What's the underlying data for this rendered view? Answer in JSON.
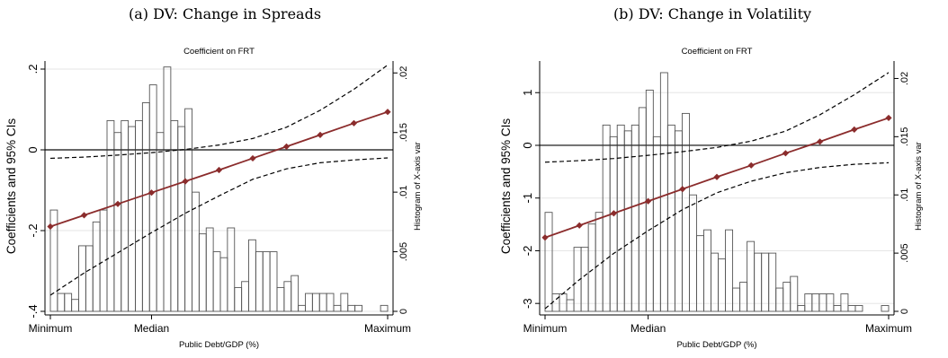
{
  "colors": {
    "estimate": "#8b2c2c",
    "ci": "#000000",
    "bars": "#555555",
    "zero": "#333333"
  },
  "chart_data": [
    {
      "type": "line",
      "caption": "(a) DV: Change in Spreads",
      "title": "Coefficient on FRT",
      "xlabel": "Public Debt/GDP (%)",
      "ylabel": "Coefficients and 95% CIs",
      "y2label": "Histogram of X-axis var",
      "x_ticks": [
        "Minimum",
        "Median",
        "Maximum"
      ],
      "xlim": [
        0,
        1
      ],
      "ylim": [
        -0.4,
        0.22
      ],
      "yticks": [
        -0.4,
        -0.2,
        0,
        0.2
      ],
      "ytick_labels": [
        "-.4",
        "-.2",
        "0",
        ".2"
      ],
      "y2lim": [
        0,
        0.021
      ],
      "y2ticks": [
        0,
        0.005,
        0.01,
        0.015,
        0.02
      ],
      "y2tick_labels": [
        "0",
        ".005",
        ".01",
        ".015",
        ".02"
      ],
      "grid": true,
      "legend": "none",
      "series": [
        {
          "role": "estimate",
          "x": [
            0,
            0.1,
            0.2,
            0.3,
            0.4,
            0.5,
            0.6,
            0.7,
            0.8,
            0.9,
            1.0
          ],
          "y": [
            -0.19,
            -0.162,
            -0.134,
            -0.106,
            -0.078,
            -0.05,
            -0.021,
            0.008,
            0.037,
            0.066,
            0.094
          ]
        },
        {
          "role": "ci_upper",
          "x": [
            0,
            0.1,
            0.2,
            0.3,
            0.4,
            0.5,
            0.6,
            0.7,
            0.8,
            0.9,
            1.0
          ],
          "y": [
            -0.021,
            -0.018,
            -0.013,
            -0.007,
            0.001,
            0.012,
            0.028,
            0.056,
            0.098,
            0.15,
            0.21
          ]
        },
        {
          "role": "ci_lower",
          "x": [
            0,
            0.1,
            0.2,
            0.3,
            0.4,
            0.5,
            0.6,
            0.7,
            0.8,
            0.9,
            1.0
          ],
          "y": [
            -0.36,
            -0.305,
            -0.255,
            -0.205,
            -0.157,
            -0.114,
            -0.073,
            -0.047,
            -0.032,
            -0.025,
            -0.02
          ]
        }
      ],
      "histogram": [
        {
          "x0": 0.0,
          "x1": 0.021,
          "density": 0.0085
        },
        {
          "x0": 0.021,
          "x1": 0.042,
          "density": 0.0015
        },
        {
          "x0": 0.042,
          "x1": 0.063,
          "density": 0.0015
        },
        {
          "x0": 0.063,
          "x1": 0.084,
          "density": 0.001
        },
        {
          "x0": 0.084,
          "x1": 0.105,
          "density": 0.0055
        },
        {
          "x0": 0.105,
          "x1": 0.126,
          "density": 0.0055
        },
        {
          "x0": 0.126,
          "x1": 0.147,
          "density": 0.0075
        },
        {
          "x0": 0.147,
          "x1": 0.168,
          "density": 0.0085
        },
        {
          "x0": 0.168,
          "x1": 0.189,
          "density": 0.016
        },
        {
          "x0": 0.189,
          "x1": 0.21,
          "density": 0.015
        },
        {
          "x0": 0.21,
          "x1": 0.231,
          "density": 0.016
        },
        {
          "x0": 0.231,
          "x1": 0.252,
          "density": 0.0155
        },
        {
          "x0": 0.252,
          "x1": 0.273,
          "density": 0.016
        },
        {
          "x0": 0.273,
          "x1": 0.294,
          "density": 0.0175
        },
        {
          "x0": 0.294,
          "x1": 0.315,
          "density": 0.019
        },
        {
          "x0": 0.315,
          "x1": 0.336,
          "density": 0.015
        },
        {
          "x0": 0.336,
          "x1": 0.357,
          "density": 0.0205
        },
        {
          "x0": 0.357,
          "x1": 0.378,
          "density": 0.016
        },
        {
          "x0": 0.378,
          "x1": 0.399,
          "density": 0.0155
        },
        {
          "x0": 0.399,
          "x1": 0.42,
          "density": 0.017
        },
        {
          "x0": 0.42,
          "x1": 0.441,
          "density": 0.01
        },
        {
          "x0": 0.441,
          "x1": 0.462,
          "density": 0.0065
        },
        {
          "x0": 0.462,
          "x1": 0.483,
          "density": 0.007
        },
        {
          "x0": 0.483,
          "x1": 0.504,
          "density": 0.005
        },
        {
          "x0": 0.504,
          "x1": 0.525,
          "density": 0.0045
        },
        {
          "x0": 0.525,
          "x1": 0.546,
          "density": 0.007
        },
        {
          "x0": 0.546,
          "x1": 0.567,
          "density": 0.002
        },
        {
          "x0": 0.567,
          "x1": 0.588,
          "density": 0.0025
        },
        {
          "x0": 0.588,
          "x1": 0.609,
          "density": 0.006
        },
        {
          "x0": 0.609,
          "x1": 0.63,
          "density": 0.005
        },
        {
          "x0": 0.63,
          "x1": 0.651,
          "density": 0.005
        },
        {
          "x0": 0.651,
          "x1": 0.672,
          "density": 0.005
        },
        {
          "x0": 0.672,
          "x1": 0.693,
          "density": 0.002
        },
        {
          "x0": 0.693,
          "x1": 0.714,
          "density": 0.0025
        },
        {
          "x0": 0.714,
          "x1": 0.735,
          "density": 0.003
        },
        {
          "x0": 0.735,
          "x1": 0.756,
          "density": 0.0005
        },
        {
          "x0": 0.756,
          "x1": 0.777,
          "density": 0.0015
        },
        {
          "x0": 0.777,
          "x1": 0.798,
          "density": 0.0015
        },
        {
          "x0": 0.798,
          "x1": 0.819,
          "density": 0.0015
        },
        {
          "x0": 0.819,
          "x1": 0.84,
          "density": 0.0015
        },
        {
          "x0": 0.84,
          "x1": 0.861,
          "density": 0.0005
        },
        {
          "x0": 0.861,
          "x1": 0.882,
          "density": 0.0015
        },
        {
          "x0": 0.882,
          "x1": 0.903,
          "density": 0.0005
        },
        {
          "x0": 0.903,
          "x1": 0.924,
          "density": 0.0005
        },
        {
          "x0": 0.979,
          "x1": 1.0,
          "density": 0.0005
        }
      ]
    },
    {
      "type": "line",
      "caption": "(b) DV: Change in Volatility",
      "title": "Coefficient on FRT",
      "xlabel": "Public Debt/GDP (%)",
      "ylabel": "Coefficients and 95% CIs",
      "y2label": "Histogram of X-axis var",
      "x_ticks": [
        "Minimum",
        "Median",
        "Maximum"
      ],
      "xlim": [
        0,
        1
      ],
      "ylim": [
        -3.15,
        1.6
      ],
      "yticks": [
        -3,
        -2,
        -1,
        0,
        1
      ],
      "ytick_labels": [
        "-3",
        "-2",
        "-1",
        "0",
        "1"
      ],
      "y2lim": [
        0,
        0.0215
      ],
      "y2ticks": [
        0,
        0.005,
        0.01,
        0.015,
        0.02
      ],
      "y2tick_labels": [
        "0",
        ".005",
        ".01",
        ".015",
        ".02"
      ],
      "grid": true,
      "legend": "none",
      "series": [
        {
          "role": "estimate",
          "x": [
            0,
            0.1,
            0.2,
            0.3,
            0.4,
            0.5,
            0.6,
            0.7,
            0.8,
            0.9,
            1.0
          ],
          "y": [
            -1.75,
            -1.52,
            -1.29,
            -1.06,
            -0.83,
            -0.6,
            -0.38,
            -0.15,
            0.07,
            0.3,
            0.52
          ]
        },
        {
          "role": "ci_upper",
          "x": [
            0,
            0.1,
            0.2,
            0.3,
            0.4,
            0.5,
            0.6,
            0.7,
            0.8,
            0.9,
            1.0
          ],
          "y": [
            -0.32,
            -0.29,
            -0.25,
            -0.19,
            -0.12,
            -0.04,
            0.08,
            0.27,
            0.58,
            0.96,
            1.38
          ]
        },
        {
          "role": "ci_lower",
          "x": [
            0,
            0.1,
            0.2,
            0.3,
            0.4,
            0.5,
            0.6,
            0.7,
            0.8,
            0.9,
            1.0
          ],
          "y": [
            -3.1,
            -2.55,
            -2.05,
            -1.62,
            -1.22,
            -0.9,
            -0.68,
            -0.52,
            -0.42,
            -0.36,
            -0.33
          ]
        }
      ],
      "histogram": [
        {
          "x0": 0.0,
          "x1": 0.021,
          "density": 0.0085
        },
        {
          "x0": 0.021,
          "x1": 0.042,
          "density": 0.0015
        },
        {
          "x0": 0.042,
          "x1": 0.063,
          "density": 0.0015
        },
        {
          "x0": 0.063,
          "x1": 0.084,
          "density": 0.001
        },
        {
          "x0": 0.084,
          "x1": 0.105,
          "density": 0.0055
        },
        {
          "x0": 0.105,
          "x1": 0.126,
          "density": 0.0055
        },
        {
          "x0": 0.126,
          "x1": 0.147,
          "density": 0.0075
        },
        {
          "x0": 0.147,
          "x1": 0.168,
          "density": 0.0085
        },
        {
          "x0": 0.168,
          "x1": 0.189,
          "density": 0.016
        },
        {
          "x0": 0.189,
          "x1": 0.21,
          "density": 0.015
        },
        {
          "x0": 0.21,
          "x1": 0.231,
          "density": 0.016
        },
        {
          "x0": 0.231,
          "x1": 0.252,
          "density": 0.0155
        },
        {
          "x0": 0.252,
          "x1": 0.273,
          "density": 0.016
        },
        {
          "x0": 0.273,
          "x1": 0.294,
          "density": 0.0175
        },
        {
          "x0": 0.294,
          "x1": 0.315,
          "density": 0.019
        },
        {
          "x0": 0.315,
          "x1": 0.336,
          "density": 0.015
        },
        {
          "x0": 0.336,
          "x1": 0.357,
          "density": 0.0205
        },
        {
          "x0": 0.357,
          "x1": 0.378,
          "density": 0.016
        },
        {
          "x0": 0.378,
          "x1": 0.399,
          "density": 0.0155
        },
        {
          "x0": 0.399,
          "x1": 0.42,
          "density": 0.017
        },
        {
          "x0": 0.42,
          "x1": 0.441,
          "density": 0.01
        },
        {
          "x0": 0.441,
          "x1": 0.462,
          "density": 0.0065
        },
        {
          "x0": 0.462,
          "x1": 0.483,
          "density": 0.007
        },
        {
          "x0": 0.483,
          "x1": 0.504,
          "density": 0.005
        },
        {
          "x0": 0.504,
          "x1": 0.525,
          "density": 0.0045
        },
        {
          "x0": 0.525,
          "x1": 0.546,
          "density": 0.007
        },
        {
          "x0": 0.546,
          "x1": 0.567,
          "density": 0.002
        },
        {
          "x0": 0.567,
          "x1": 0.588,
          "density": 0.0025
        },
        {
          "x0": 0.588,
          "x1": 0.609,
          "density": 0.006
        },
        {
          "x0": 0.609,
          "x1": 0.63,
          "density": 0.005
        },
        {
          "x0": 0.63,
          "x1": 0.651,
          "density": 0.005
        },
        {
          "x0": 0.651,
          "x1": 0.672,
          "density": 0.005
        },
        {
          "x0": 0.672,
          "x1": 0.693,
          "density": 0.002
        },
        {
          "x0": 0.693,
          "x1": 0.714,
          "density": 0.0025
        },
        {
          "x0": 0.714,
          "x1": 0.735,
          "density": 0.003
        },
        {
          "x0": 0.735,
          "x1": 0.756,
          "density": 0.0005
        },
        {
          "x0": 0.756,
          "x1": 0.777,
          "density": 0.0015
        },
        {
          "x0": 0.777,
          "x1": 0.798,
          "density": 0.0015
        },
        {
          "x0": 0.798,
          "x1": 0.819,
          "density": 0.0015
        },
        {
          "x0": 0.819,
          "x1": 0.84,
          "density": 0.0015
        },
        {
          "x0": 0.84,
          "x1": 0.861,
          "density": 0.0005
        },
        {
          "x0": 0.861,
          "x1": 0.882,
          "density": 0.0015
        },
        {
          "x0": 0.882,
          "x1": 0.903,
          "density": 0.0005
        },
        {
          "x0": 0.903,
          "x1": 0.924,
          "density": 0.0005
        },
        {
          "x0": 0.979,
          "x1": 1.0,
          "density": 0.0005
        }
      ]
    }
  ]
}
